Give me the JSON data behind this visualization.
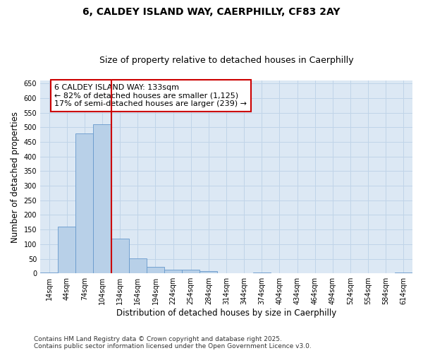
{
  "title_line1": "6, CALDEY ISLAND WAY, CAERPHILLY, CF83 2AY",
  "title_line2": "Size of property relative to detached houses in Caerphilly",
  "xlabel": "Distribution of detached houses by size in Caerphilly",
  "ylabel": "Number of detached properties",
  "categories": [
    "14sqm",
    "44sqm",
    "74sqm",
    "104sqm",
    "134sqm",
    "164sqm",
    "194sqm",
    "224sqm",
    "254sqm",
    "284sqm",
    "314sqm",
    "344sqm",
    "374sqm",
    "404sqm",
    "434sqm",
    "464sqm",
    "494sqm",
    "524sqm",
    "554sqm",
    "584sqm",
    "614sqm"
  ],
  "values": [
    3,
    160,
    480,
    510,
    120,
    52,
    22,
    12,
    12,
    8,
    0,
    0,
    3,
    0,
    0,
    0,
    0,
    0,
    0,
    0,
    3
  ],
  "bar_color": "#b8d0e8",
  "bar_edge_color": "#6699cc",
  "grid_color": "#c0d4e8",
  "background_color": "#dce8f4",
  "vline_color": "#cc0000",
  "annotation_text": "6 CALDEY ISLAND WAY: 133sqm\n← 82% of detached houses are smaller (1,125)\n17% of semi-detached houses are larger (239) →",
  "annotation_box_color": "#ffffff",
  "annotation_box_edge": "#cc0000",
  "ylim": [
    0,
    660
  ],
  "yticks": [
    0,
    50,
    100,
    150,
    200,
    250,
    300,
    350,
    400,
    450,
    500,
    550,
    600,
    650
  ],
  "footnote": "Contains HM Land Registry data © Crown copyright and database right 2025.\nContains public sector information licensed under the Open Government Licence v3.0.",
  "title_fontsize": 10,
  "subtitle_fontsize": 9,
  "tick_fontsize": 7,
  "label_fontsize": 8.5,
  "annot_fontsize": 8,
  "footnote_fontsize": 6.5
}
